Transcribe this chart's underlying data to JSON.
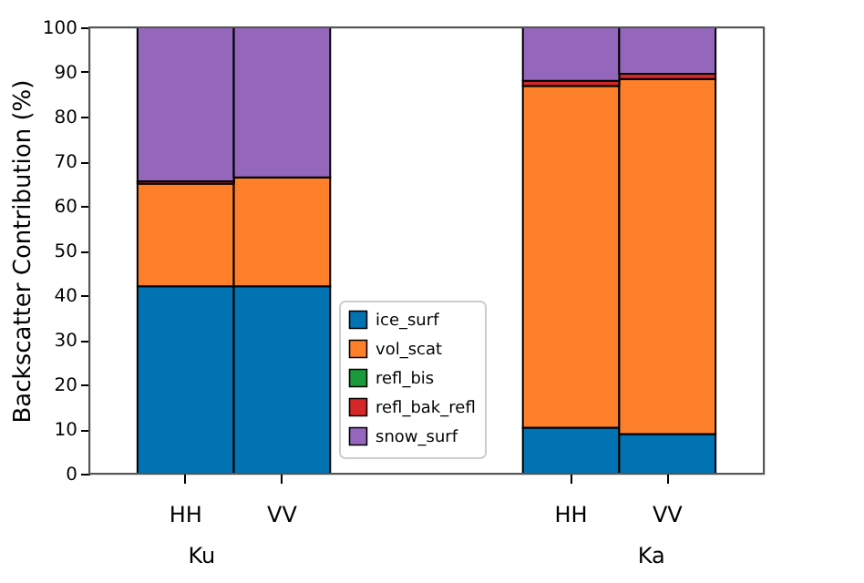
{
  "chart_data": {
    "type": "bar",
    "stacked": true,
    "ylabel": "Backscatter Contribution (%)",
    "categories": [
      "HH",
      "VV",
      null,
      null,
      "HH",
      "VV"
    ],
    "series": [
      {
        "name": "ice_surf",
        "color": "#0173b2",
        "values": [
          42,
          42,
          null,
          null,
          10.3,
          8.9
        ]
      },
      {
        "name": "vol_scat",
        "color": "#fe7f2a",
        "values": [
          23,
          24.4,
          null,
          null,
          76.6,
          79.5
        ]
      },
      {
        "name": "refl_bis",
        "color": "#1a9a3a",
        "values": [
          0,
          0,
          null,
          null,
          0,
          0
        ]
      },
      {
        "name": "refl_bak_refl",
        "color": "#d62728",
        "values": [
          0.5,
          null,
          null,
          null,
          1.1,
          1.2
        ]
      },
      {
        "name": "snow_surf",
        "color": "#9467bd",
        "values": [
          34.5,
          33.6,
          null,
          null,
          12,
          10.4
        ]
      }
    ],
    "ylim": [
      0,
      100
    ],
    "yticks": [
      0,
      10,
      20,
      30,
      40,
      50,
      60,
      70,
      80,
      90,
      100
    ],
    "grid": false,
    "legend": "bottom",
    "annotations": [
      "Ku",
      "Ka"
    ]
  }
}
